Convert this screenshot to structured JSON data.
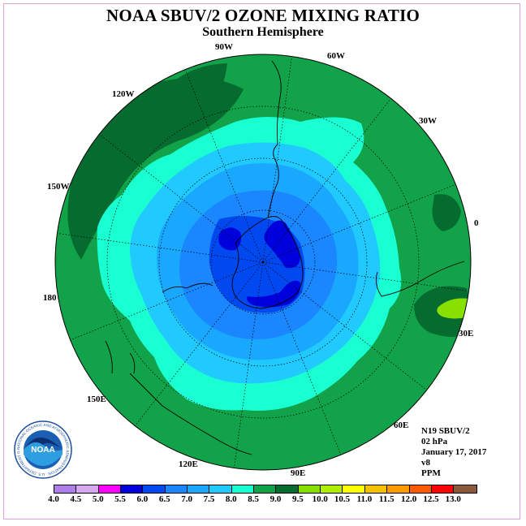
{
  "title": "NOAA SBUV/2 OZONE MIXING RATIO",
  "subtitle": "Southern Hemisphere",
  "longitude_labels": [
    "0",
    "30E",
    "60E",
    "90E",
    "120E",
    "150E",
    "180",
    "150W",
    "120W",
    "90W",
    "60W",
    "30W"
  ],
  "info": {
    "satellite": "N19 SBUV/2",
    "pressure": "02 hPa",
    "date": "January 17, 2017",
    "version": "v8",
    "units": "PPM"
  },
  "logo": {
    "text": "NOAA",
    "ring_text": "NATIONAL OCEANIC AND ATMOSPHERIC ADMINISTRATION · U.S. DEPARTMENT OF COMMERCE"
  },
  "colorbar": {
    "ticks": [
      "4.0",
      "4.5",
      "5.0",
      "5.5",
      "6.0",
      "6.5",
      "7.0",
      "7.5",
      "8.0",
      "8.5",
      "9.0",
      "9.5",
      "10.0",
      "10.5",
      "11.0",
      "11.5",
      "12.0",
      "12.5",
      "13.0"
    ],
    "colors": [
      "#b07ee8",
      "#d8a8f0",
      "#ff00ff",
      "#0000dd",
      "#0048f0",
      "#1a86ff",
      "#1aa8ff",
      "#20caff",
      "#1affd2",
      "#11a24a",
      "#066b2e",
      "#88e000",
      "#b0ee00",
      "#ffff00",
      "#f4c200",
      "#ff9a00",
      "#ff5a00",
      "#ff0000",
      "#8b5a3c"
    ]
  },
  "map_colors": {
    "deep_green": "#066b2e",
    "green": "#11a24a",
    "aqua": "#1affd2",
    "light_blue": "#20caff",
    "blue_70": "#1aa8ff",
    "blue_65": "#1a86ff",
    "blue_60": "#0048f0",
    "blue_55": "#0000dd",
    "yellow_green": "#88e000"
  }
}
